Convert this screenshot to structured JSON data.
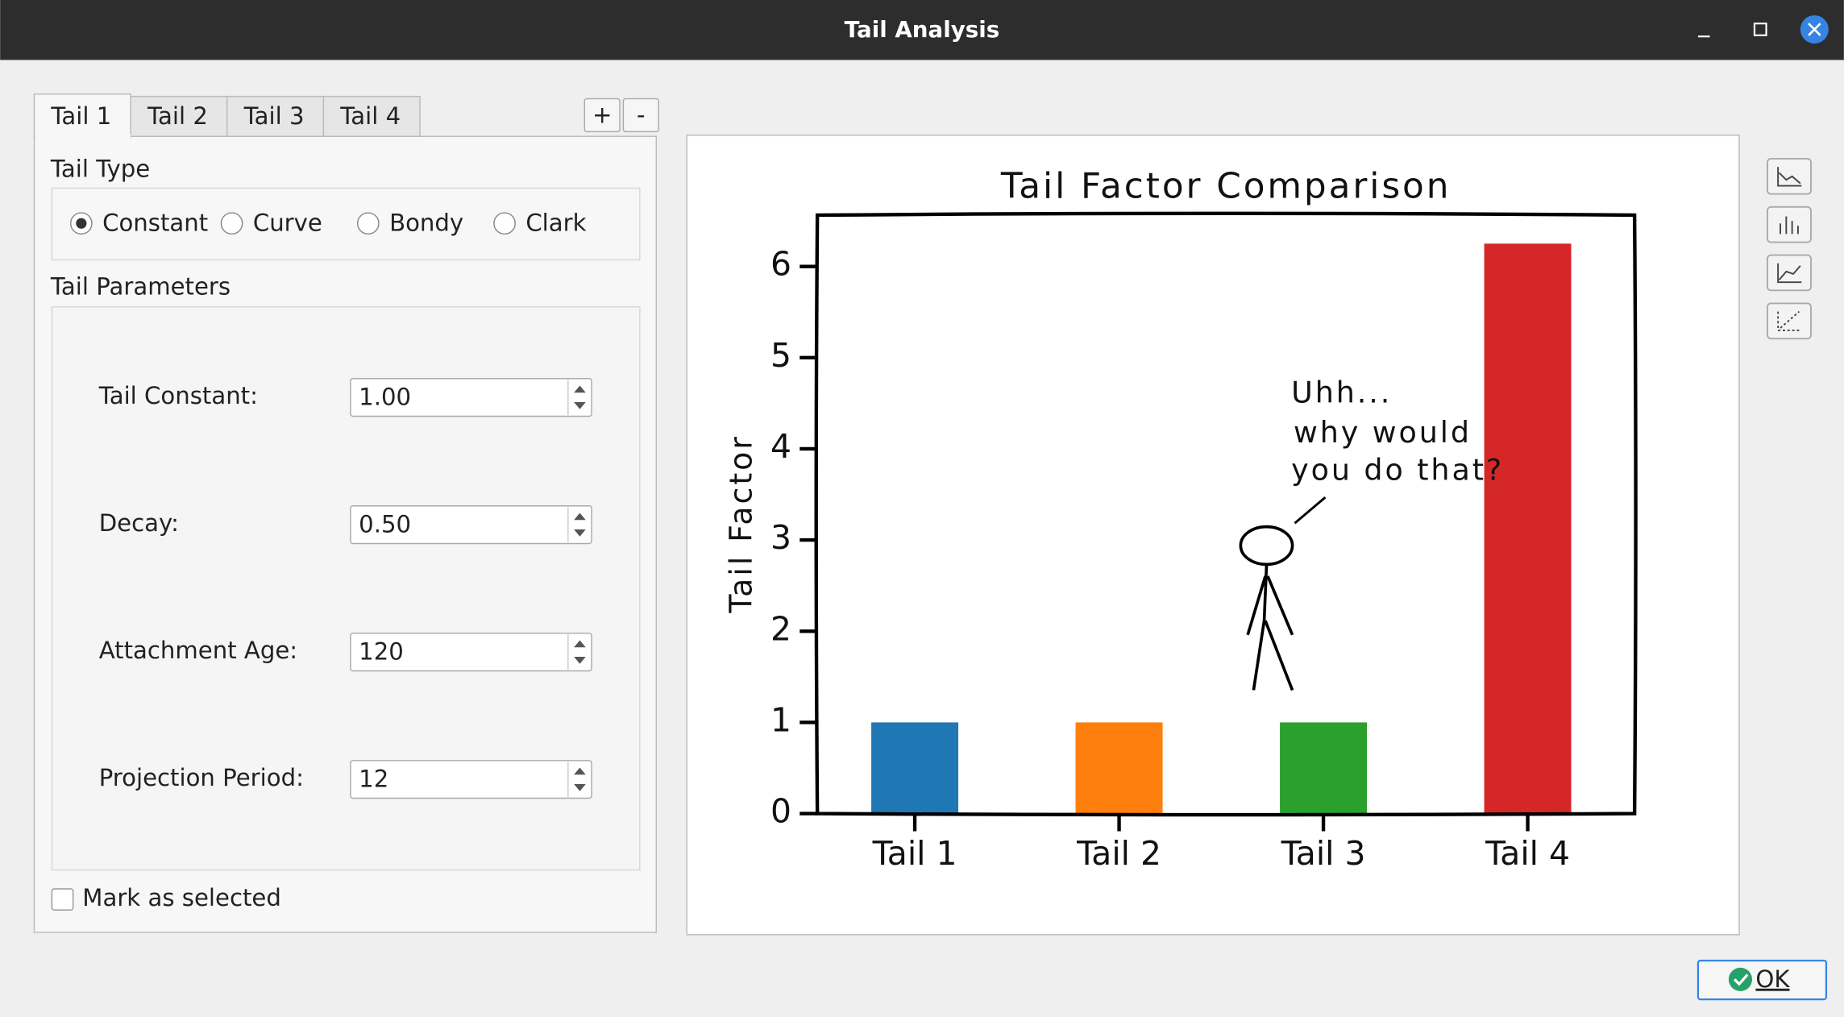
{
  "window": {
    "title": "Tail Analysis"
  },
  "tabs": [
    "Tail 1",
    "Tail 2",
    "Tail 3",
    "Tail 4"
  ],
  "tab_buttons": [
    "+",
    "-"
  ],
  "tail_type": {
    "label": "Tail Type",
    "options": [
      "Constant",
      "Curve",
      "Bondy",
      "Clark"
    ],
    "selected": 0
  },
  "tail_parameters": {
    "label": "Tail Parameters",
    "fields": [
      {
        "label": "Tail Constant:",
        "value": "1.00"
      },
      {
        "label": "Decay:",
        "value": "0.50"
      },
      {
        "label": "Attachment Age:",
        "value": "120"
      },
      {
        "label": "Projection Period:",
        "value": "12"
      }
    ]
  },
  "mark_selected": {
    "label": "Mark as selected",
    "checked": false
  },
  "ok_button": "OK",
  "chart_data": {
    "type": "bar",
    "title": "Tail Factor Comparison",
    "y_label": "Tail Factor",
    "categories": [
      "Tail 1",
      "Tail 2",
      "Tail 3",
      "Tail 4"
    ],
    "values": [
      1,
      1,
      1,
      6.25
    ],
    "colors": [
      "#1f77b4",
      "#ff7f0e",
      "#2ca02c",
      "#d62728"
    ],
    "ylim": [
      0,
      6.5625
    ],
    "yticks": [
      0,
      1,
      2,
      3,
      4,
      5,
      6
    ],
    "annotation": [
      "Uhh...",
      "why would",
      "you do that?"
    ]
  }
}
